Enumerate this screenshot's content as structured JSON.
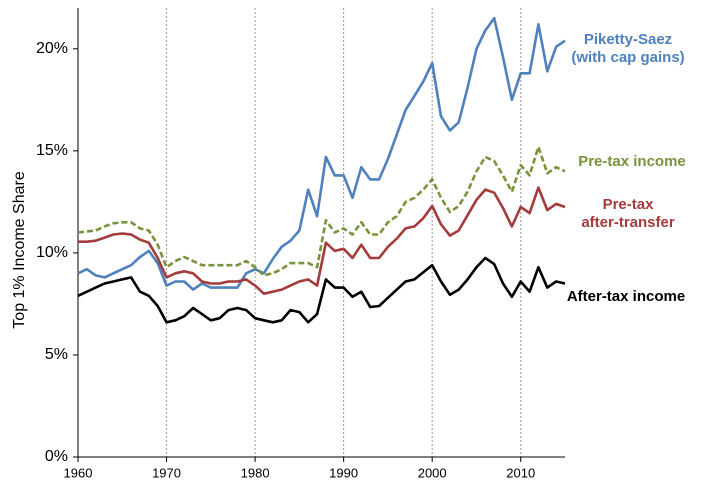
{
  "chart_data": {
    "type": "line",
    "y_label": "Top 1% Income Share",
    "x": [
      1960,
      1961,
      1962,
      1963,
      1964,
      1965,
      1966,
      1967,
      1968,
      1969,
      1970,
      1971,
      1972,
      1973,
      1974,
      1975,
      1976,
      1977,
      1978,
      1979,
      1980,
      1981,
      1982,
      1983,
      1984,
      1985,
      1986,
      1987,
      1988,
      1989,
      1990,
      1991,
      1992,
      1993,
      1994,
      1995,
      1996,
      1997,
      1998,
      1999,
      2000,
      2001,
      2002,
      2003,
      2004,
      2005,
      2006,
      2007,
      2008,
      2009,
      2010,
      2011,
      2012,
      2013,
      2014,
      2015
    ],
    "series": [
      {
        "name": "Piketty-Saez\n(with cap gains)",
        "color": "#4f81bd",
        "dashed": false,
        "values": [
          9.0,
          9.2,
          8.9,
          8.8,
          9.0,
          9.2,
          9.4,
          9.8,
          10.1,
          9.5,
          8.4,
          8.6,
          8.6,
          8.2,
          8.5,
          8.3,
          8.3,
          8.3,
          8.3,
          9.0,
          9.2,
          9.0,
          9.7,
          10.3,
          10.6,
          11.1,
          13.1,
          11.8,
          14.7,
          13.8,
          13.8,
          12.7,
          14.2,
          13.6,
          13.6,
          14.6,
          15.8,
          17.0,
          17.7,
          18.4,
          19.3,
          16.7,
          16.0,
          16.4,
          18.1,
          20.0,
          20.9,
          21.5,
          19.6,
          17.5,
          18.8,
          18.8,
          21.2,
          18.9,
          20.1,
          20.4
        ]
      },
      {
        "name": "Pre-tax income",
        "color": "#77933c",
        "dashed": true,
        "values": [
          11.0,
          11.05,
          11.1,
          11.3,
          11.45,
          11.5,
          11.5,
          11.2,
          11.1,
          10.4,
          9.3,
          9.6,
          9.8,
          9.6,
          9.4,
          9.4,
          9.4,
          9.4,
          9.4,
          9.6,
          9.3,
          8.9,
          9.0,
          9.2,
          9.5,
          9.5,
          9.5,
          9.3,
          11.6,
          11.0,
          11.2,
          10.9,
          11.5,
          10.9,
          10.9,
          11.5,
          11.8,
          12.5,
          12.7,
          13.1,
          13.6,
          12.7,
          12.0,
          12.3,
          13.0,
          14.0,
          14.7,
          14.5,
          13.8,
          13.0,
          14.3,
          13.8,
          15.2,
          13.9,
          14.2,
          14.0
        ]
      },
      {
        "name": "Pre-tax\nafter-transfer",
        "color": "#a33c3a",
        "dashed": false,
        "values": [
          10.55,
          10.55,
          10.6,
          10.75,
          10.9,
          10.95,
          10.9,
          10.65,
          10.5,
          9.75,
          8.8,
          9.0,
          9.1,
          9.0,
          8.6,
          8.5,
          8.5,
          8.6,
          8.6,
          8.7,
          8.4,
          8.0,
          8.1,
          8.2,
          8.4,
          8.6,
          8.7,
          8.4,
          10.5,
          10.1,
          10.2,
          9.75,
          10.4,
          9.75,
          9.75,
          10.3,
          10.7,
          11.2,
          11.3,
          11.7,
          12.3,
          11.4,
          10.85,
          11.1,
          11.85,
          12.6,
          13.1,
          12.95,
          12.2,
          11.3,
          12.25,
          11.95,
          13.2,
          12.1,
          12.4,
          12.25
        ]
      },
      {
        "name": "After-tax income",
        "color": "#000000",
        "dashed": false,
        "values": [
          7.9,
          8.1,
          8.3,
          8.5,
          8.6,
          8.7,
          8.8,
          8.1,
          7.9,
          7.4,
          6.6,
          6.7,
          6.9,
          7.3,
          7.0,
          6.7,
          6.8,
          7.2,
          7.3,
          7.2,
          6.8,
          6.7,
          6.6,
          6.7,
          7.2,
          7.1,
          6.6,
          7.0,
          8.7,
          8.3,
          8.3,
          7.85,
          8.1,
          7.35,
          7.4,
          7.8,
          8.2,
          8.6,
          8.7,
          9.05,
          9.4,
          8.6,
          7.95,
          8.2,
          8.7,
          9.3,
          9.75,
          9.45,
          8.5,
          7.85,
          8.6,
          8.1,
          9.3,
          8.3,
          8.6,
          8.5
        ]
      }
    ],
    "xlim": [
      1960,
      2015
    ],
    "xticks": [
      1960,
      1970,
      1980,
      1990,
      2000,
      2010
    ],
    "ylim": [
      0,
      22
    ],
    "yticks": [
      {
        "value": 0,
        "label": "0%"
      },
      {
        "value": 5,
        "label": "5%"
      },
      {
        "value": 10,
        "label": "10%"
      },
      {
        "value": 15,
        "label": "15%"
      },
      {
        "value": 20,
        "label": "20%"
      }
    ],
    "grid": "x"
  }
}
